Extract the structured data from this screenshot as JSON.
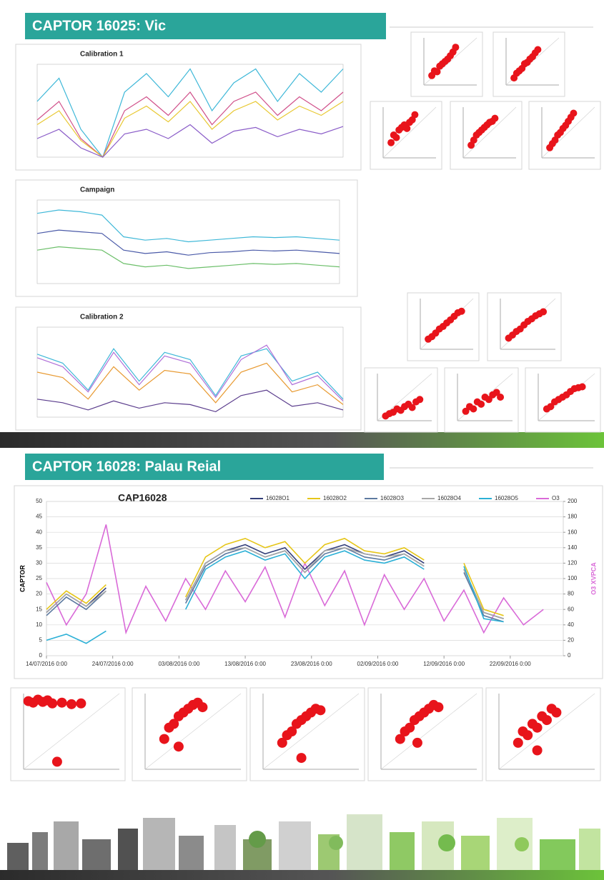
{
  "sections": [
    {
      "title": "CAPTOR 16025: Vic"
    },
    {
      "title": "CAPTOR 16028: Palau Reial"
    }
  ],
  "chart_data": [
    {
      "type": "line",
      "title": "Calibration 1",
      "ylim": [
        0,
        1000
      ],
      "series": [
        {
          "color": "#3fb8d8",
          "values": [
            600,
            850,
            300,
            0,
            700,
            900,
            650,
            950,
            500,
            800,
            950,
            600,
            900,
            700,
            950
          ]
        },
        {
          "color": "#d0508a",
          "values": [
            400,
            600,
            200,
            0,
            500,
            650,
            450,
            700,
            350,
            600,
            700,
            450,
            650,
            500,
            700
          ]
        },
        {
          "color": "#e8c832",
          "values": [
            350,
            500,
            180,
            0,
            420,
            550,
            380,
            600,
            300,
            500,
            600,
            400,
            550,
            450,
            600
          ]
        },
        {
          "color": "#8a5cc8",
          "values": [
            200,
            300,
            100,
            0,
            250,
            300,
            200,
            350,
            150,
            280,
            320,
            220,
            300,
            250,
            330
          ]
        }
      ]
    },
    {
      "type": "line",
      "title": "Campaign",
      "ylim": [
        0,
        500
      ],
      "series": [
        {
          "color": "#3fb8d8",
          "values": [
            420,
            440,
            430,
            410,
            280,
            260,
            270,
            250,
            260,
            270,
            280,
            275,
            280,
            270,
            260
          ]
        },
        {
          "color": "#4a5aa8",
          "values": [
            300,
            320,
            310,
            300,
            200,
            180,
            190,
            170,
            185,
            190,
            200,
            195,
            200,
            190,
            180
          ]
        },
        {
          "color": "#6cbf6a",
          "values": [
            200,
            220,
            210,
            200,
            120,
            100,
            110,
            90,
            100,
            110,
            120,
            115,
            120,
            110,
            100
          ]
        }
      ]
    },
    {
      "type": "line",
      "title": "Calibration 2",
      "ylim": [
        0,
        500
      ],
      "series": [
        {
          "color": "#3fb8d8",
          "values": [
            350,
            300,
            150,
            380,
            200,
            360,
            320,
            120,
            340,
            380,
            200,
            250,
            100
          ]
        },
        {
          "color": "#b070d8",
          "values": [
            330,
            280,
            140,
            360,
            180,
            340,
            300,
            110,
            320,
            400,
            180,
            230,
            90
          ]
        },
        {
          "color": "#e89a32",
          "values": [
            250,
            220,
            100,
            280,
            150,
            260,
            240,
            80,
            250,
            300,
            140,
            180,
            70
          ]
        },
        {
          "color": "#5a3c8c",
          "values": [
            100,
            80,
            40,
            90,
            50,
            80,
            70,
            30,
            120,
            150,
            60,
            80,
            40
          ]
        }
      ]
    },
    {
      "type": "line",
      "title": "CAP16028",
      "y_label": "CAPTOR",
      "y2_label": "O3 XVPCA",
      "grid": true,
      "x": [
        "2016-07-14",
        "2016-07-17",
        "2016-07-20",
        "2016-07-23",
        "2016-07-26",
        "2016-07-29",
        "2016-08-01",
        "2016-08-04",
        "2016-08-07",
        "2016-08-10",
        "2016-08-13",
        "2016-08-16",
        "2016-08-19",
        "2016-08-22",
        "2016-08-25",
        "2016-08-28",
        "2016-08-31",
        "2016-09-03",
        "2016-09-06",
        "2016-09-09",
        "2016-09-12",
        "2016-09-15",
        "2016-09-18",
        "2016-09-21",
        "2016-09-24",
        "2016-09-27"
      ],
      "xlim": [
        "2016-07-14",
        "2016-09-30"
      ],
      "xticks": [
        {
          "value": "2016-07-14",
          "label": "14/07/2016 0:00"
        },
        {
          "value": "2016-07-24",
          "label": "24/07/2016 0:00"
        },
        {
          "value": "2016-08-03",
          "label": "03/08/2016 0:00"
        },
        {
          "value": "2016-08-13",
          "label": "13/08/2016 0:00"
        },
        {
          "value": "2016-08-23",
          "label": "23/08/2016 0:00"
        },
        {
          "value": "2016-09-02",
          "label": "02/09/2016 0:00"
        },
        {
          "value": "2016-09-12",
          "label": "12/09/2016 0:00"
        },
        {
          "value": "2016-09-22",
          "label": "22/09/2016 0:00"
        }
      ],
      "ylim": [
        0,
        50
      ],
      "yticks": [
        0,
        5,
        10,
        15,
        20,
        25,
        30,
        35,
        40,
        45,
        50
      ],
      "y2lim": [
        0,
        200
      ],
      "y2ticks": [
        0,
        20,
        40,
        60,
        80,
        100,
        120,
        140,
        160,
        180,
        200
      ],
      "series": [
        {
          "name": "16028O1",
          "color": "#34407a",
          "values": [
            14,
            20,
            16,
            22,
            null,
            null,
            null,
            18,
            30,
            34,
            36,
            33,
            35,
            28,
            34,
            36,
            33,
            32,
            34,
            30,
            null,
            28,
            14,
            12,
            null,
            null
          ]
        },
        {
          "name": "16028O2",
          "color": "#e6c619",
          "values": [
            15,
            21,
            17,
            23,
            null,
            null,
            null,
            19,
            32,
            36,
            38,
            35,
            37,
            30,
            36,
            38,
            34,
            33,
            35,
            31,
            null,
            30,
            15,
            13,
            null,
            null
          ]
        },
        {
          "name": "16028O3",
          "color": "#5d7aa0",
          "values": [
            13,
            19,
            15,
            21,
            null,
            null,
            null,
            17,
            29,
            33,
            35,
            32,
            34,
            27,
            33,
            35,
            32,
            31,
            33,
            29,
            null,
            27,
            13,
            11,
            null,
            null
          ]
        },
        {
          "name": "16028O4",
          "color": "#a8a8a8",
          "values": [
            14,
            20,
            16,
            21,
            null,
            null,
            null,
            18,
            30,
            34,
            35,
            32,
            34,
            27,
            34,
            35,
            33,
            32,
            33,
            29,
            null,
            28,
            14,
            12,
            null,
            null
          ]
        },
        {
          "name": "16028O5",
          "color": "#2bb0d6",
          "values": [
            5,
            7,
            4,
            8,
            null,
            null,
            null,
            15,
            28,
            32,
            34,
            31,
            33,
            25,
            32,
            34,
            31,
            30,
            32,
            28,
            null,
            29,
            12,
            11,
            null,
            null
          ]
        },
        {
          "name": "O3",
          "color": "#d96ad8",
          "axis": "y2",
          "values": [
            95,
            40,
            80,
            170,
            30,
            90,
            45,
            100,
            60,
            110,
            70,
            115,
            50,
            120,
            65,
            110,
            40,
            105,
            60,
            100,
            45,
            85,
            30,
            75,
            40,
            60
          ]
        }
      ]
    },
    {
      "type": "scatter",
      "color": "#e8141b",
      "xlim": [
        0,
        100
      ],
      "ylim": [
        0,
        100
      ],
      "x": [
        15,
        20,
        25,
        30,
        35,
        40,
        45,
        50,
        55,
        60
      ],
      "values": [
        20,
        30,
        28,
        40,
        45,
        50,
        55,
        62,
        70,
        80
      ]
    },
    {
      "type": "scatter",
      "color": "#e8141b",
      "xlim": [
        0,
        100
      ],
      "ylim": [
        0,
        100
      ],
      "x": [
        15,
        20,
        25,
        30,
        35,
        40,
        45,
        50,
        55,
        60
      ],
      "values": [
        15,
        25,
        30,
        35,
        45,
        48,
        55,
        60,
        68,
        75
      ]
    },
    {
      "type": "scatter",
      "color": "#e8141b",
      "xlim": [
        0,
        100
      ],
      "ylim": [
        0,
        100
      ],
      "x": [
        15,
        20,
        25,
        30,
        35,
        40,
        45,
        50,
        55,
        60
      ],
      "values": [
        30,
        45,
        40,
        55,
        60,
        65,
        58,
        70,
        75,
        85
      ]
    },
    {
      "type": "scatter",
      "color": "#e8141b",
      "xlim": [
        0,
        100
      ],
      "ylim": [
        0,
        100
      ],
      "x": [
        15,
        20,
        25,
        30,
        35,
        40,
        45,
        50,
        55,
        60
      ],
      "values": [
        25,
        35,
        45,
        50,
        55,
        60,
        65,
        70,
        72,
        78
      ]
    },
    {
      "type": "scatter",
      "color": "#e8141b",
      "xlim": [
        0,
        100
      ],
      "ylim": [
        0,
        100
      ],
      "x": [
        15,
        20,
        25,
        30,
        35,
        40,
        45,
        50,
        55,
        60
      ],
      "values": [
        20,
        28,
        35,
        45,
        50,
        58,
        64,
        72,
        80,
        88
      ]
    },
    {
      "type": "scatter",
      "color": "#e8141b",
      "xlim": [
        0,
        100
      ],
      "ylim": [
        0,
        100
      ],
      "x": [
        15,
        22,
        29,
        36,
        43,
        50,
        57,
        64,
        71,
        78
      ],
      "values": [
        20,
        25,
        32,
        40,
        45,
        52,
        58,
        65,
        72,
        75
      ]
    },
    {
      "type": "scatter",
      "color": "#e8141b",
      "xlim": [
        0,
        100
      ],
      "ylim": [
        0,
        100
      ],
      "x": [
        15,
        22,
        29,
        36,
        43,
        50,
        57,
        64,
        71,
        78
      ],
      "values": [
        22,
        28,
        35,
        40,
        48,
        55,
        60,
        66,
        70,
        74
      ]
    },
    {
      "type": "scatter",
      "color": "#e8141b",
      "xlim": [
        0,
        100
      ],
      "ylim": [
        0,
        100
      ],
      "x": [
        15,
        22,
        29,
        36,
        43,
        50,
        57,
        64,
        71,
        78
      ],
      "values": [
        10,
        15,
        18,
        25,
        22,
        30,
        35,
        28,
        40,
        45
      ]
    },
    {
      "type": "scatter",
      "color": "#e8141b",
      "xlim": [
        0,
        100
      ],
      "ylim": [
        0,
        100
      ],
      "x": [
        15,
        22,
        29,
        36,
        43,
        50,
        57,
        64,
        71,
        78
      ],
      "values": [
        20,
        30,
        25,
        40,
        35,
        50,
        45,
        55,
        60,
        50
      ]
    },
    {
      "type": "scatter",
      "color": "#e8141b",
      "xlim": [
        0,
        100
      ],
      "ylim": [
        0,
        100
      ],
      "x": [
        15,
        22,
        29,
        36,
        43,
        50,
        57,
        64,
        71,
        78
      ],
      "values": [
        25,
        30,
        40,
        45,
        50,
        55,
        62,
        68,
        70,
        72
      ]
    },
    {
      "type": "scatter",
      "color": "#e8141b",
      "xlim": [
        0,
        100
      ],
      "ylim": [
        0,
        100
      ],
      "x": [
        5,
        10,
        15,
        20,
        25,
        30,
        40,
        50,
        60,
        35
      ],
      "values": [
        90,
        88,
        92,
        89,
        91,
        87,
        88,
        86,
        87,
        10
      ]
    },
    {
      "type": "scatter",
      "color": "#e8141b",
      "xlim": [
        0,
        100
      ],
      "ylim": [
        0,
        100
      ],
      "x": [
        20,
        25,
        30,
        35,
        40,
        45,
        50,
        55,
        60,
        35
      ],
      "values": [
        40,
        55,
        60,
        70,
        75,
        80,
        85,
        88,
        82,
        30
      ]
    },
    {
      "type": "scatter",
      "color": "#e8141b",
      "xlim": [
        0,
        100
      ],
      "ylim": [
        0,
        100
      ],
      "x": [
        20,
        25,
        30,
        35,
        40,
        45,
        50,
        55,
        60,
        40
      ],
      "values": [
        35,
        45,
        50,
        60,
        65,
        70,
        75,
        80,
        78,
        15
      ]
    },
    {
      "type": "scatter",
      "color": "#e8141b",
      "xlim": [
        0,
        100
      ],
      "ylim": [
        0,
        100
      ],
      "x": [
        20,
        25,
        30,
        35,
        40,
        45,
        50,
        55,
        60,
        38
      ],
      "values": [
        40,
        50,
        55,
        65,
        70,
        75,
        80,
        85,
        82,
        35
      ]
    },
    {
      "type": "scatter",
      "color": "#e8141b",
      "xlim": [
        0,
        100
      ],
      "ylim": [
        0,
        100
      ],
      "x": [
        20,
        25,
        30,
        35,
        40,
        45,
        50,
        55,
        60,
        40
      ],
      "values": [
        35,
        50,
        45,
        60,
        55,
        70,
        65,
        80,
        75,
        25
      ]
    }
  ]
}
